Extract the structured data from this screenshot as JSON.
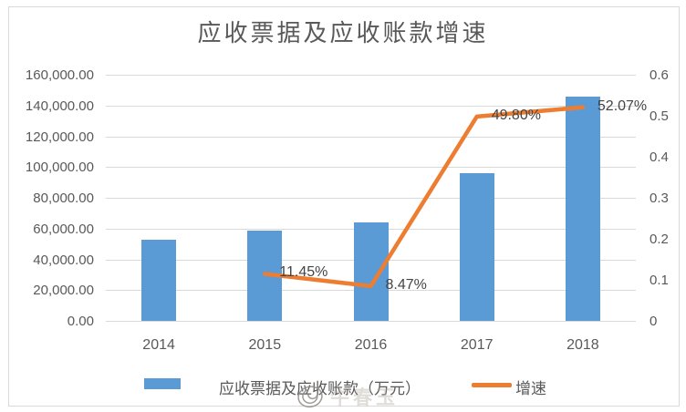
{
  "title": "应收票据及应收账款增速",
  "chart_data": {
    "type": "bar",
    "combo": "bar+line",
    "title": "应收票据及应收账款增速",
    "categories": [
      "2014",
      "2015",
      "2016",
      "2017",
      "2018"
    ],
    "series": [
      {
        "name": "应收票据及应收账款（万元）",
        "type": "bar",
        "axis": "left",
        "color": "#5B9BD5",
        "values": [
          52900,
          58950,
          63950,
          96000,
          146000
        ]
      },
      {
        "name": "增速",
        "type": "line",
        "axis": "right",
        "color": "#ED7D31",
        "values": [
          null,
          0.1145,
          0.0847,
          0.498,
          0.5207
        ],
        "point_labels": [
          "",
          "11.45%",
          "8.47%",
          "49.80%",
          "52.07%"
        ]
      }
    ],
    "left_axis": {
      "min": 0,
      "max": 160000,
      "step": 20000,
      "ticks": [
        "160,000.00",
        "140,000.00",
        "120,000.00",
        "100,000.00",
        "80,000.00",
        "60,000.00",
        "40,000.00",
        "20,000.00",
        "0.00"
      ]
    },
    "right_axis": {
      "min": 0,
      "max": 0.6,
      "step": 0.1,
      "ticks": [
        "0.6",
        "0.5",
        "0.4",
        "0.3",
        "0.2",
        "0.1",
        "0"
      ]
    },
    "grid": true,
    "legend_position": "bottom",
    "legend": [
      {
        "label": "应收票据及应收账款（万元）",
        "marker": "rect",
        "color": "#5B9BD5"
      },
      {
        "label": "增速",
        "marker": "line",
        "color": "#ED7D31"
      }
    ]
  },
  "watermark": {
    "symbol": "@",
    "text": "牛春玉"
  },
  "colors": {
    "bar": "#5B9BD5",
    "line": "#ED7D31",
    "grid": "#D9D9D9",
    "text": "#595959",
    "label": "#444444",
    "border": "#D9D9D9"
  }
}
